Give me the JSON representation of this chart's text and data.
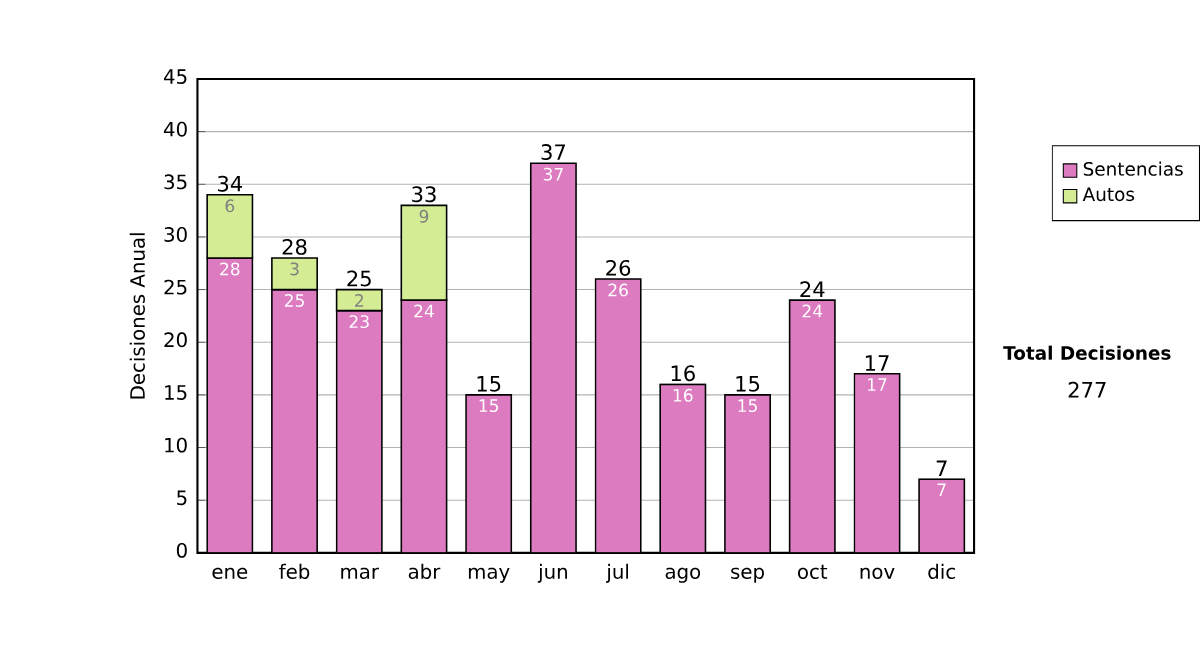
{
  "chart_data": {
    "type": "bar",
    "stacked": true,
    "ylabel": "Decisiones Anual",
    "categories": [
      "ene",
      "feb",
      "mar",
      "abr",
      "may",
      "jun",
      "jul",
      "ago",
      "sep",
      "oct",
      "nov",
      "dic"
    ],
    "series": [
      {
        "name": "Sentencias",
        "color": "#dd7bc0",
        "values": [
          28,
          25,
          23,
          24,
          15,
          37,
          26,
          16,
          15,
          24,
          17,
          7
        ]
      },
      {
        "name": "Autos",
        "color": "#d4ec94",
        "values": [
          6,
          3,
          2,
          9,
          null,
          null,
          null,
          null,
          null,
          null,
          null,
          null
        ]
      }
    ],
    "totals": [
      "34",
      "28",
      "25",
      "33",
      "15",
      "37",
      "26",
      "16",
      "15",
      "24",
      "17",
      "7"
    ],
    "data_labels": true,
    "ylim": [
      0,
      45
    ],
    "yticks": [
      0,
      5,
      10,
      15,
      20,
      25,
      30,
      35,
      40,
      45
    ],
    "grid": "y",
    "legend": "right",
    "annotations": [
      "Total Decisiones",
      "277"
    ]
  }
}
